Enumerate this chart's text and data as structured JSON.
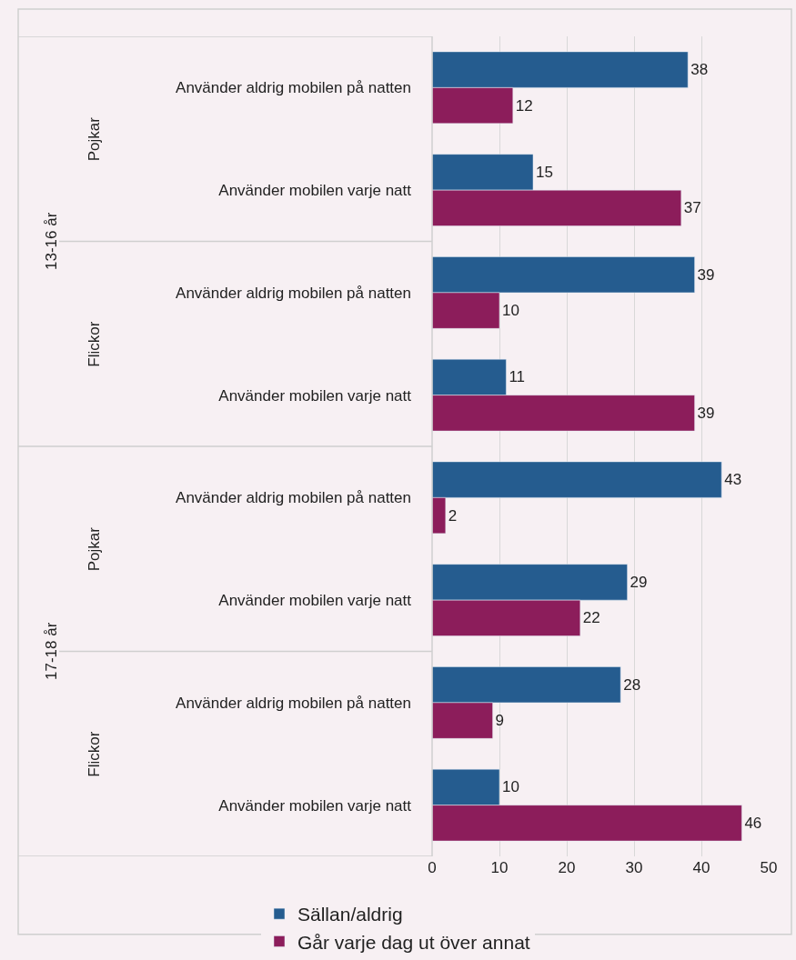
{
  "chart_data": {
    "type": "bar",
    "orientation": "horizontal",
    "categories": [
      "Använder aldrig mobilen på natten",
      "Använder mobilen varje natt",
      "Använder aldrig mobilen på natten",
      "Använder mobilen varje natt",
      "Använder aldrig mobilen på natten",
      "Använder mobilen varje natt",
      "Använder aldrig mobilen på natten",
      "Använder mobilen varje natt"
    ],
    "series": [
      {
        "name": "Sällan/aldrig",
        "color": "#255c8f",
        "values": [
          38,
          15,
          39,
          11,
          43,
          29,
          28,
          10
        ]
      },
      {
        "name": "Går varje dag ut över annat",
        "color": "#8c1d5b",
        "values": [
          12,
          37,
          10,
          39,
          2,
          22,
          9,
          46
        ]
      }
    ],
    "annotations": [
      "13-16 år",
      "17-18 år",
      "Pojkar",
      "Flickor",
      "Pojkar",
      "Flickor"
    ],
    "xlim": [
      0,
      50
    ],
    "xticks": [
      0,
      10,
      20,
      30,
      40,
      50
    ],
    "grid": "x",
    "legend": "bottom",
    "data_labels": true
  }
}
